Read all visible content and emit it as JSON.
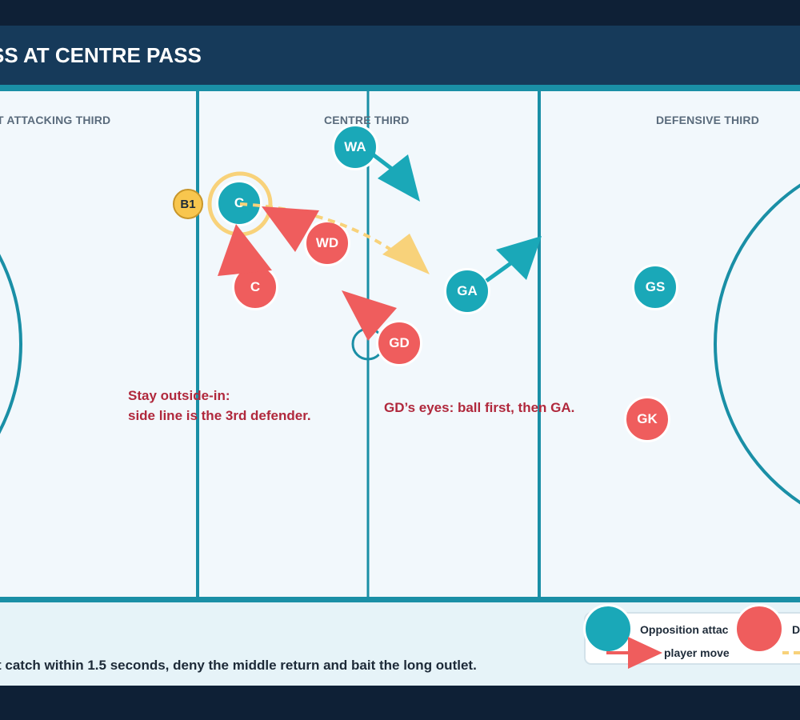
{
  "title": "SS AT CENTRE PASS",
  "zones": {
    "attacking": "T ATTACKING THIRD",
    "centre": "CENTRE THIRD",
    "defensive": "DEFENSIVE THIRD"
  },
  "colors": {
    "attack": "#1aa8b8",
    "defence": "#ef5d5d",
    "ball": "#f8c64e",
    "court_line": "#1a8fa6"
  },
  "players": {
    "wa": "WA",
    "c_attack": "C",
    "wd": "WD",
    "c_defence": "C",
    "ga": "GA",
    "gd": "GD",
    "gs": "GS",
    "gk": "GK"
  },
  "ball_label": "B1",
  "notes": {
    "outside_line1": "Stay outside-in:",
    "outside_line2": "side line is the 3rd defender.",
    "gd_eyes": "GD’s eyes: ball first, then GA."
  },
  "legend": {
    "attack_label": "Opposition attac",
    "defence_label": "D",
    "move_label": "player move"
  },
  "footer": "t catch within 1.5 seconds, deny the middle return and bait the long outlet."
}
